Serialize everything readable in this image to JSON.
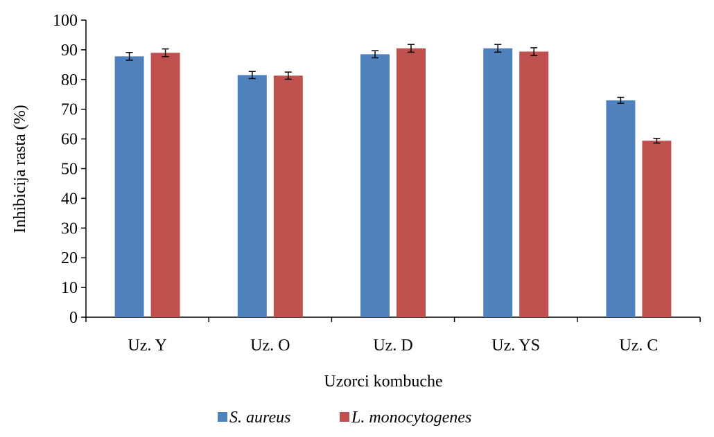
{
  "chart_data": {
    "type": "bar",
    "title": "",
    "xlabel": "Uzorci kombuche",
    "ylabel": "Inhibicija rasta (%)",
    "ylim": [
      0,
      100
    ],
    "yticks": [
      0,
      10,
      20,
      30,
      40,
      50,
      60,
      70,
      80,
      90,
      100
    ],
    "categories": [
      "Uz. Y",
      "Uz. O",
      "Uz. D",
      "Uz. YS",
      "Uz. C"
    ],
    "series": [
      {
        "name": "S. aureus",
        "color": "#4F81BD",
        "values": [
          87.8,
          81.5,
          88.5,
          90.5,
          73.0
        ],
        "errors": [
          1.3,
          1.2,
          1.2,
          1.3,
          1.0
        ]
      },
      {
        "name": "L. monocytogenes",
        "color": "#C0504D",
        "values": [
          89.0,
          81.3,
          90.5,
          89.4,
          59.4
        ],
        "errors": [
          1.3,
          1.2,
          1.3,
          1.3,
          0.8
        ]
      }
    ],
    "grid": false,
    "legend_position": "bottom",
    "error_bars": true
  }
}
